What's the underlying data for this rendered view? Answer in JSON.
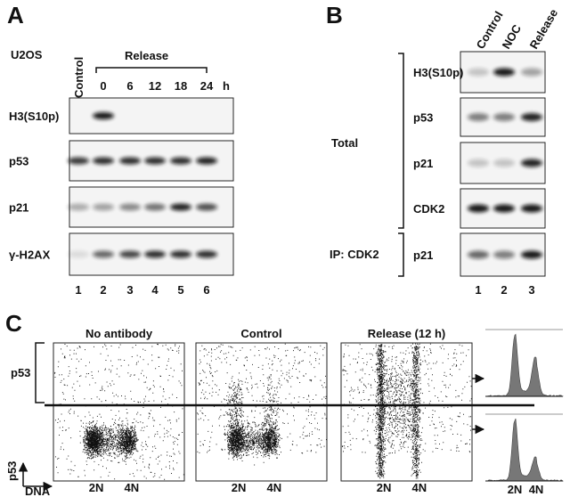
{
  "panel_a": {
    "label": "A",
    "cell_line": "U2OS",
    "control": "Control",
    "release": "Release",
    "timepoints": [
      "0",
      "6",
      "12",
      "18",
      "24"
    ],
    "time_unit": "h",
    "rows": [
      "H3(S10p)",
      "p53",
      "p21",
      "γ-H2AX"
    ],
    "lanes": [
      "1",
      "2",
      "3",
      "4",
      "5",
      "6"
    ]
  },
  "panel_b": {
    "label": "B",
    "columns": [
      "Control",
      "NOC",
      "Release"
    ],
    "rows": [
      "H3(S10p)",
      "p53",
      "p21",
      "CDK2",
      "p21"
    ],
    "groups": [
      "Total",
      "IP: CDK2"
    ],
    "lanes": [
      "1",
      "2",
      "3"
    ]
  },
  "panel_c": {
    "label": "C",
    "plots": [
      "No antibody",
      "Control",
      "Release (12 h)"
    ],
    "bracket_label": "p53",
    "y_axis": "p53",
    "x_axis": "DNA",
    "dna_labels": [
      "2N",
      "4N"
    ]
  }
}
